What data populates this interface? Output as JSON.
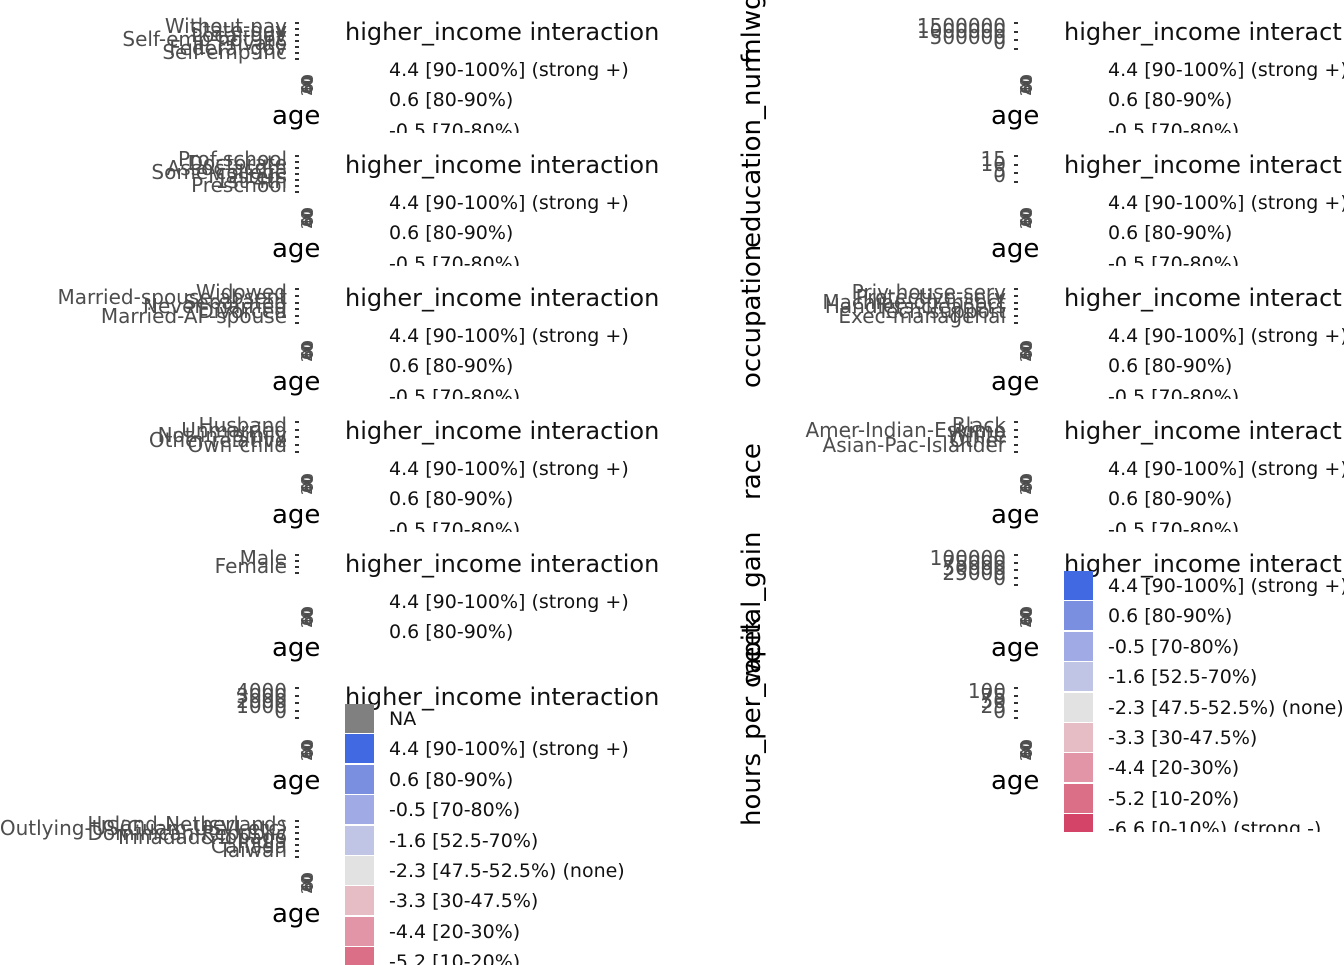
{
  "legend": {
    "title": "higher_income interaction",
    "items": [
      {
        "label": "NA",
        "color": "#808080"
      },
      {
        "label": " 4.4 [90-100%] (strong +)",
        "color": "#4169e1"
      },
      {
        "label": " 0.6 [80-90%)",
        "color": "#7b8fe0"
      },
      {
        "label": "-0.5 [70-80%)",
        "color": "#a0aae4"
      },
      {
        "label": "-1.6 [52.5-70%)",
        "color": "#c0c5e6"
      },
      {
        "label": "-2.3 [47.5-52.5%) (none)",
        "color": "#e2e2e2"
      },
      {
        "label": "-3.3 [30-47.5%)",
        "color": "#e6bcc5"
      },
      {
        "label": "-4.4 [20-30%)",
        "color": "#e295a6"
      },
      {
        "label": "-5.2 [10-20%)",
        "color": "#dc6f88"
      },
      {
        "label": "-6.6 [0-10%) (strong -)",
        "color": "#d44468"
      }
    ]
  },
  "x_axis_label": "age",
  "x_ticks": [
    "20",
    "40",
    "60",
    "80"
  ],
  "side_labels": {
    "fnlwgt": "fnlwgt",
    "education_num": "education_num",
    "occupation": "occupation",
    "race": "race",
    "capital_gain": "capital_gain",
    "hours_per_week": "hours_per_week"
  },
  "chart_data": [
    {
      "type": "heatmap",
      "column": "left",
      "row": 1,
      "x_label": "age",
      "y_categories": [
        "Without-pay",
        "State-gov",
        "Local-gov",
        "Self-emp-not-inc",
        "Private",
        "Federal-gov",
        "Self-emp-inc"
      ],
      "legend_entries_shown": [
        1,
        2,
        3
      ]
    },
    {
      "type": "heatmap",
      "column": "left",
      "row": 2,
      "x_label": "age",
      "y_categories": [
        "Prof-school",
        "Doctorate",
        "Assoc-acdm",
        "Some-college",
        "Masters",
        "1st-4th",
        "Preschool"
      ],
      "legend_entries_shown": [
        1,
        2,
        3
      ]
    },
    {
      "type": "heatmap",
      "column": "left",
      "row": 3,
      "x_label": "age",
      "y_categories": [
        "Widowed",
        "Married-spouse-absent",
        "Separated",
        "Never-married",
        "Divorced",
        "Married-AF-spouse"
      ],
      "legend_entries_shown": [
        1,
        2,
        3
      ]
    },
    {
      "type": "heatmap",
      "column": "left",
      "row": 4,
      "x_label": "age",
      "y_categories": [
        "Husband",
        "Unmarried",
        "Not-in-family",
        "Other-relative",
        "Own-child"
      ],
      "legend_entries_shown": [
        1,
        2,
        3
      ]
    },
    {
      "type": "heatmap",
      "column": "left",
      "row": 5,
      "x_label": "age",
      "y_categories": [
        "Male",
        "Female"
      ],
      "legend_entries_shown": [
        1,
        2
      ]
    },
    {
      "type": "heatmap",
      "column": "left",
      "row": 6,
      "x_label": "age",
      "y_categories": [
        "4000",
        "3000",
        "2000",
        "1000",
        "0"
      ],
      "legend_entries_shown": [
        0,
        1,
        2,
        3,
        4,
        5,
        6,
        7,
        8
      ]
    },
    {
      "type": "heatmap",
      "column": "left",
      "row": 7,
      "x_label": "age",
      "y_categories": [
        "Holand-Netherlands",
        "Outlying-US(Guam-USVI-etc)",
        "Dominican-Republic",
        "Trinadad&Tobago",
        "India",
        "Canada",
        "Taiwan"
      ],
      "legend_entries_shown": []
    },
    {
      "type": "heatmap",
      "column": "right",
      "row": 1,
      "name": "fnlwgt",
      "x_label": "age",
      "y_categories": [
        "1500000",
        "1000000",
        "500000",
        "0"
      ],
      "legend_entries_shown": [
        1,
        2,
        3
      ]
    },
    {
      "type": "heatmap",
      "column": "right",
      "row": 2,
      "name": "education_num",
      "x_label": "age",
      "y_categories": [
        "15",
        "10",
        "5",
        "0"
      ],
      "legend_entries_shown": [
        1,
        2,
        3
      ]
    },
    {
      "type": "heatmap",
      "column": "right",
      "row": 3,
      "name": "occupation",
      "x_label": "age",
      "y_categories": [
        "Priv-house-serv",
        "Protective-serv",
        "Machine-op-inspct",
        "Handlers-cleaners",
        "Tech-support",
        "Exec-managerial"
      ],
      "legend_entries_shown": [
        1,
        2,
        3
      ]
    },
    {
      "type": "heatmap",
      "column": "right",
      "row": 4,
      "name": "race",
      "x_label": "age",
      "y_categories": [
        "Black",
        "Amer-Indian-Eskimo",
        "White",
        "Other",
        "Asian-Pac-Islander"
      ],
      "legend_entries_shown": [
        1,
        2,
        3
      ]
    },
    {
      "type": "heatmap",
      "column": "right",
      "row": 5,
      "name": "capital_gain",
      "x_label": "age",
      "y_categories": [
        "100000",
        "75000",
        "50000",
        "25000",
        "0"
      ],
      "legend_entries_shown": [
        1,
        2,
        3,
        4,
        5,
        6,
        7,
        8,
        9
      ]
    },
    {
      "type": "heatmap",
      "column": "right",
      "row": 6,
      "name": "hours_per_week",
      "x_label": "age",
      "y_categories": [
        "100",
        "75",
        "50",
        "25",
        "0"
      ],
      "legend_entries_shown": []
    }
  ]
}
